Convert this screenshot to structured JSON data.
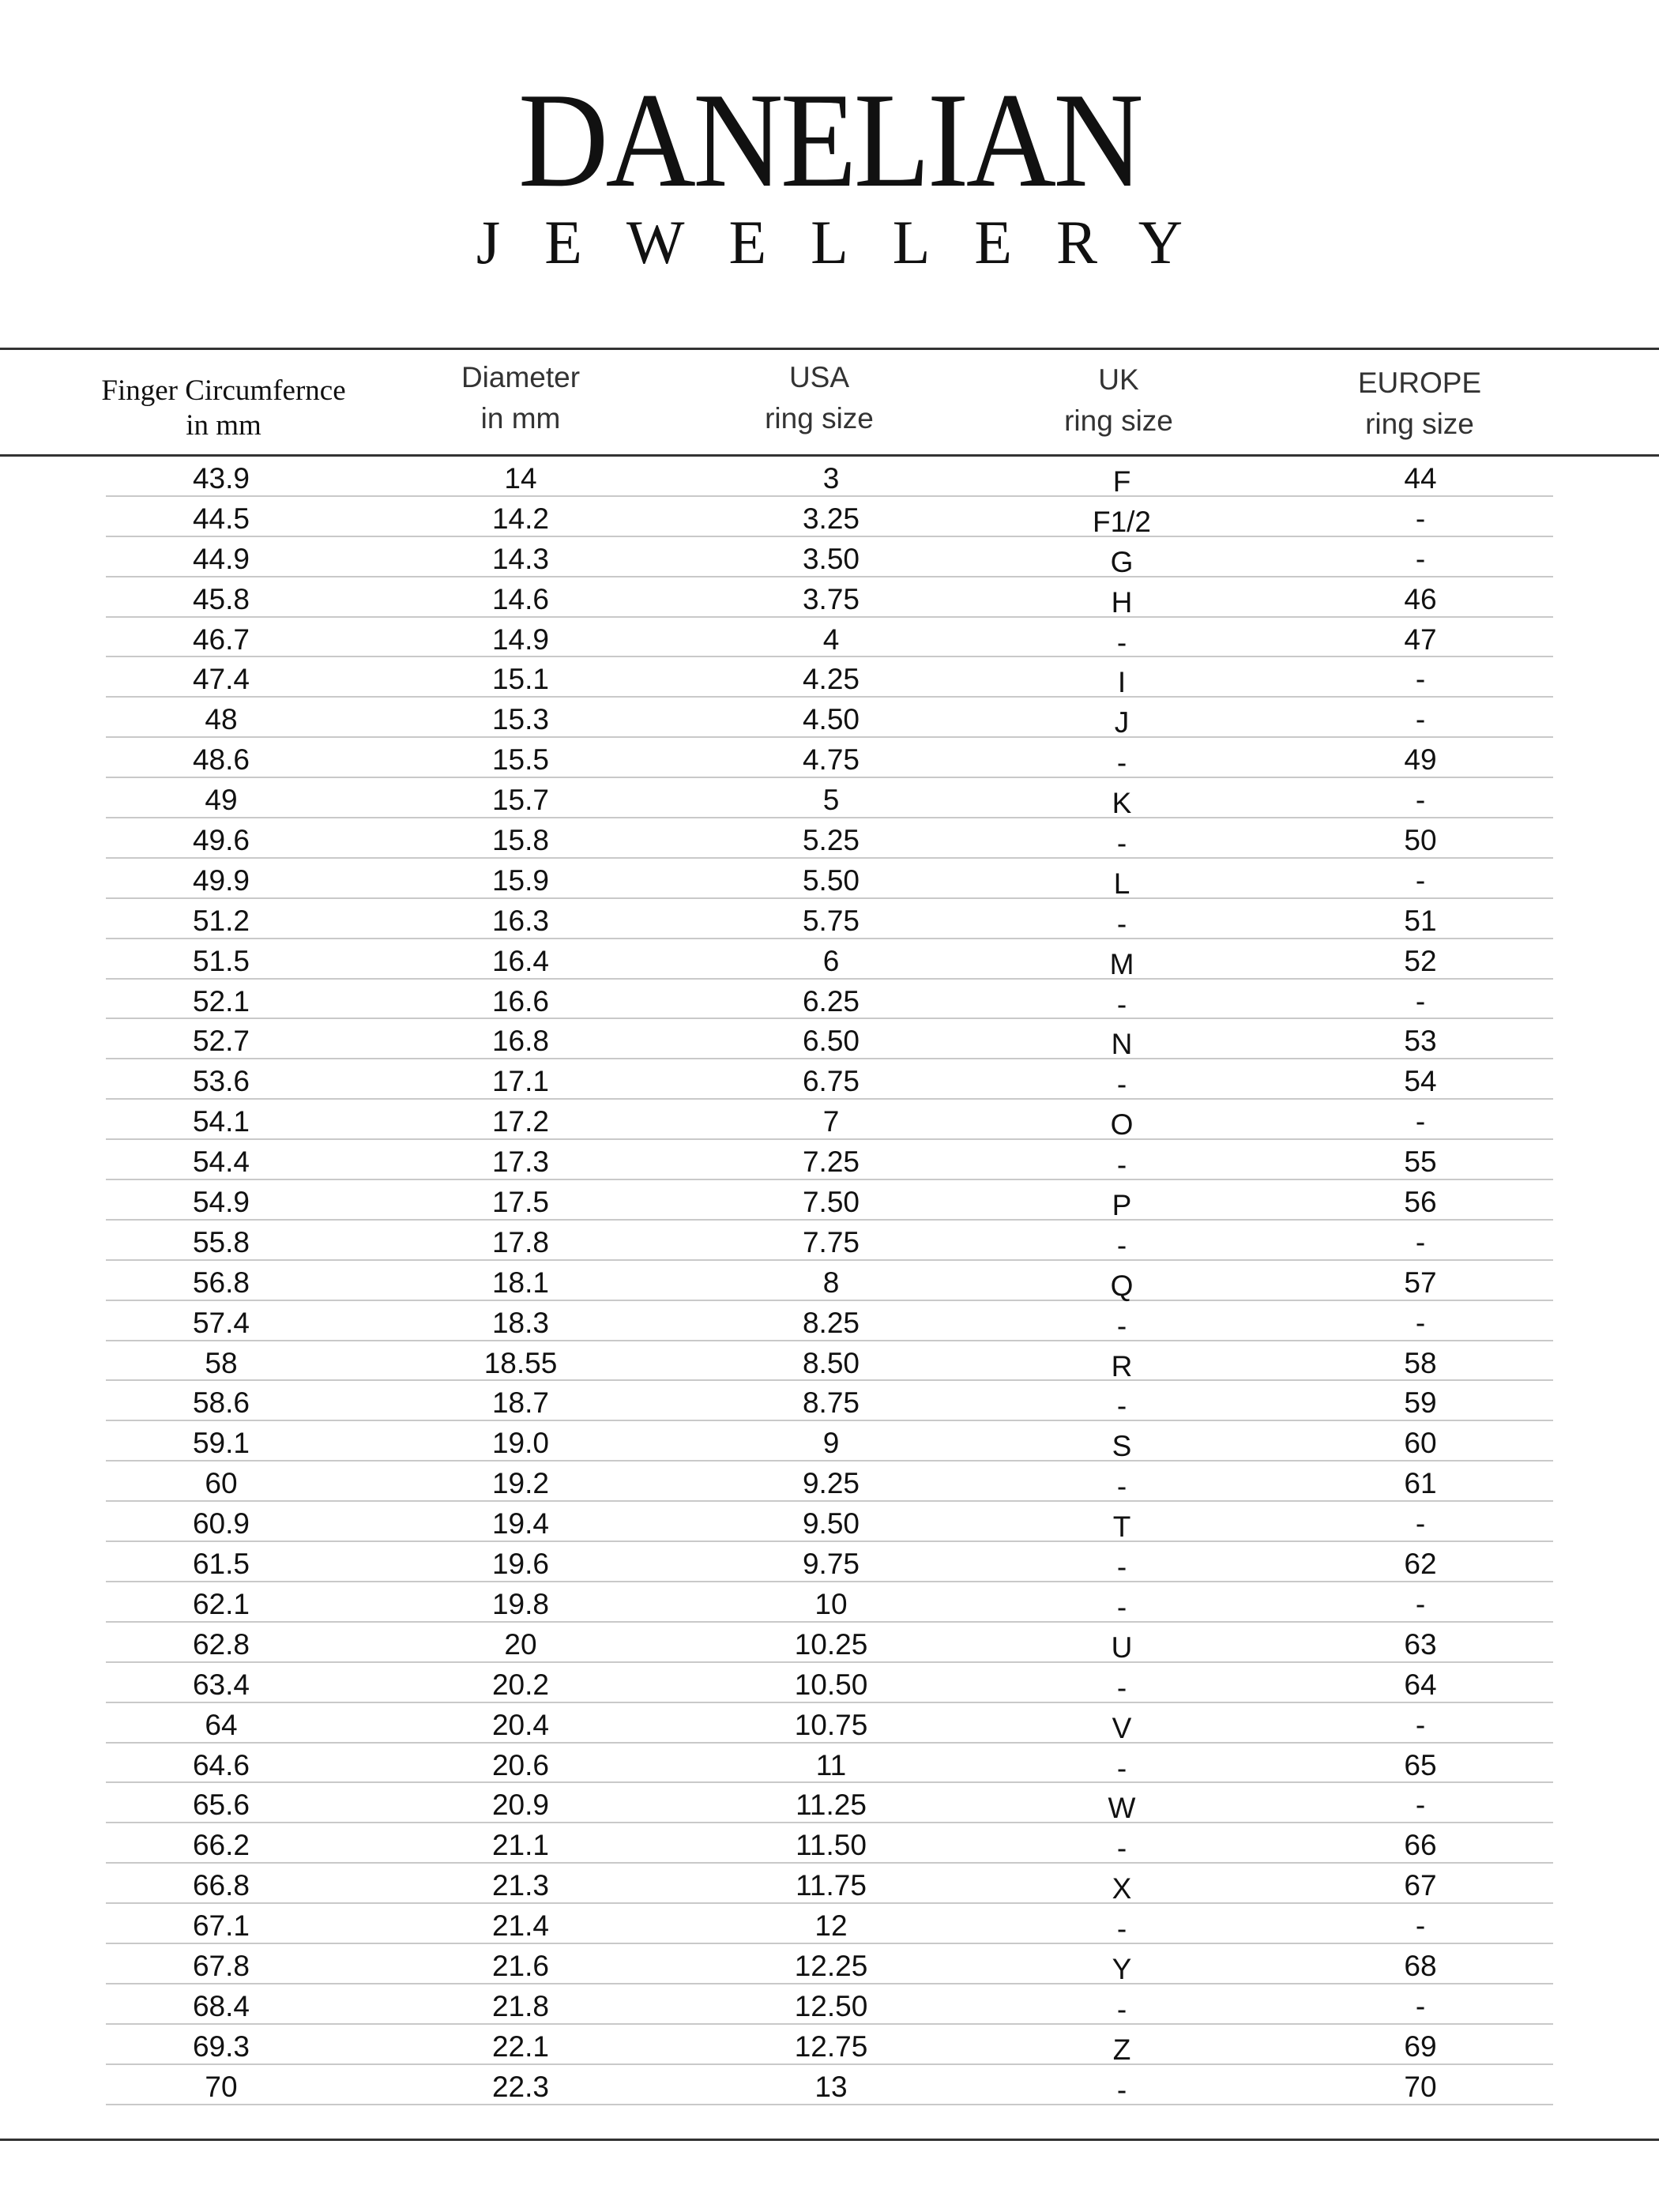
{
  "brand": {
    "name": "DANELIAN",
    "tagline": "JEWELLERY"
  },
  "table": {
    "headers": [
      {
        "line1": "Finger Circumfernce",
        "line2": "in mm"
      },
      {
        "line1": "Diameter",
        "line2": "in mm"
      },
      {
        "line1": "USA",
        "line2": "ring size"
      },
      {
        "line1": "UK",
        "line2": "ring size"
      },
      {
        "line1": "EUROPE",
        "line2": "ring size"
      }
    ],
    "rows": [
      [
        "43.9",
        "14",
        "3",
        "F",
        "44"
      ],
      [
        "44.5",
        "14.2",
        "3.25",
        "F1/2",
        "-"
      ],
      [
        "44.9",
        "14.3",
        "3.50",
        "G",
        "-"
      ],
      [
        "45.8",
        "14.6",
        "3.75",
        "H",
        "46"
      ],
      [
        "46.7",
        "14.9",
        "4",
        "-",
        "47"
      ],
      [
        "47.4",
        "15.1",
        "4.25",
        "I",
        "-"
      ],
      [
        "48",
        "15.3",
        "4.50",
        "J",
        "-"
      ],
      [
        "48.6",
        "15.5",
        "4.75",
        "-",
        "49"
      ],
      [
        "49",
        "15.7",
        "5",
        "K",
        "-"
      ],
      [
        "49.6",
        "15.8",
        "5.25",
        "-",
        "50"
      ],
      [
        "49.9",
        "15.9",
        "5.50",
        "L",
        "-"
      ],
      [
        "51.2",
        "16.3",
        "5.75",
        "-",
        "51"
      ],
      [
        "51.5",
        "16.4",
        "6",
        "M",
        "52"
      ],
      [
        "52.1",
        "16.6",
        "6.25",
        "-",
        "-"
      ],
      [
        "52.7",
        "16.8",
        "6.50",
        "N",
        "53"
      ],
      [
        "53.6",
        "17.1",
        "6.75",
        "-",
        "54"
      ],
      [
        "54.1",
        "17.2",
        "7",
        "O",
        "-"
      ],
      [
        "54.4",
        "17.3",
        "7.25",
        "-",
        "55"
      ],
      [
        "54.9",
        "17.5",
        "7.50",
        "P",
        "56"
      ],
      [
        "55.8",
        "17.8",
        "7.75",
        "-",
        "-"
      ],
      [
        "56.8",
        "18.1",
        "8",
        "Q",
        "57"
      ],
      [
        "57.4",
        "18.3",
        "8.25",
        "-",
        "-"
      ],
      [
        "58",
        "18.55",
        "8.50",
        "R",
        "58"
      ],
      [
        "58.6",
        "18.7",
        "8.75",
        "-",
        "59"
      ],
      [
        "59.1",
        "19.0",
        "9",
        "S",
        "60"
      ],
      [
        "60",
        "19.2",
        "9.25",
        "-",
        "61"
      ],
      [
        "60.9",
        "19.4",
        "9.50",
        "T",
        "-"
      ],
      [
        "61.5",
        "19.6",
        "9.75",
        "-",
        "62"
      ],
      [
        "62.1",
        "19.8",
        "10",
        "-",
        "-"
      ],
      [
        "62.8",
        "20",
        "10.25",
        "U",
        "63"
      ],
      [
        "63.4",
        "20.2",
        "10.50",
        "-",
        "64"
      ],
      [
        "64",
        "20.4",
        "10.75",
        "V",
        "-"
      ],
      [
        "64.6",
        "20.6",
        "11",
        "-",
        "65"
      ],
      [
        "65.6",
        "20.9",
        "11.25",
        "W",
        "-"
      ],
      [
        "66.2",
        "21.1",
        "11.50",
        "-",
        "66"
      ],
      [
        "66.8",
        "21.3",
        "11.75",
        "X",
        "67"
      ],
      [
        "67.1",
        "21.4",
        "12",
        "-",
        "-"
      ],
      [
        "67.8",
        "21.6",
        "12.25",
        "Y",
        "68"
      ],
      [
        "68.4",
        "21.8",
        "12.50",
        "-",
        "-"
      ],
      [
        "69.3",
        "22.1",
        "12.75",
        "Z",
        "69"
      ],
      [
        "70",
        "22.3",
        "13",
        "-",
        "70"
      ]
    ]
  }
}
